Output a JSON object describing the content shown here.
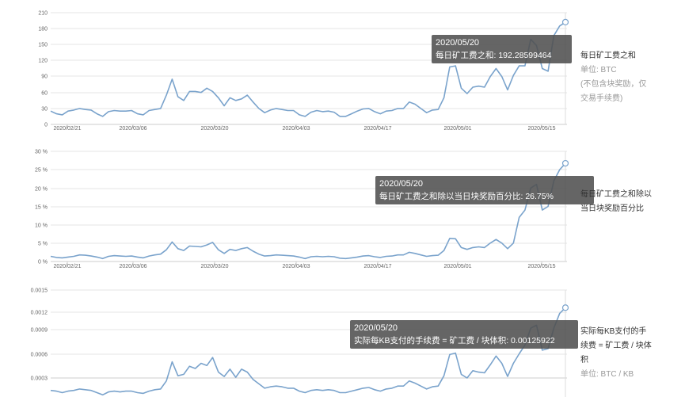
{
  "chart_data": [
    {
      "type": "line",
      "y_ticks": [
        "0",
        "30",
        "60",
        "90",
        "120",
        "150",
        "180",
        "210"
      ],
      "ylim": [
        0,
        210
      ],
      "x_tick_labels": [
        "2020/02/21",
        "2020/03/06",
        "2020/03/20",
        "2020/04/03",
        "2020/04/17",
        "2020/05/01",
        "2020/05/15"
      ],
      "grid": true,
      "tooltip": {
        "date": "2020/05/20",
        "text": "每日矿工费之和: 192.28599464"
      },
      "side": {
        "title": "每日矿工费之和",
        "unit": "单位: BTC",
        "note": "(不包含块奖励，仅交易手续费)"
      },
      "series": [
        {
          "values": [
            25,
            20,
            18,
            25,
            27,
            30,
            28,
            27,
            20,
            15,
            24,
            26,
            25,
            25,
            26,
            20,
            18,
            26,
            28,
            30,
            55,
            85,
            52,
            45,
            62,
            62,
            60,
            68,
            62,
            50,
            35,
            50,
            45,
            48,
            55,
            42,
            30,
            22,
            27,
            30,
            28,
            26,
            26,
            18,
            15,
            23,
            26,
            24,
            25,
            23,
            15,
            15,
            20,
            25,
            29,
            30,
            24,
            20,
            25,
            26,
            30,
            30,
            42,
            38,
            30,
            22,
            27,
            28,
            50,
            108,
            110,
            68,
            58,
            70,
            72,
            70,
            90,
            105,
            90,
            65,
            92,
            110,
            110,
            160,
            148,
            105,
            100,
            167,
            185,
            192.29
          ]
        }
      ]
    },
    {
      "type": "line",
      "y_ticks": [
        "0 %",
        "5 %",
        "10 %",
        "15 %",
        "20 %",
        "25 %",
        "30 %"
      ],
      "ylim": [
        0,
        30
      ],
      "x_tick_labels": [
        "2020/02/21",
        "2020/03/06",
        "2020/03/20",
        "2020/04/03",
        "2020/04/17",
        "2020/05/01",
        "2020/05/15"
      ],
      "grid": true,
      "tooltip": {
        "date": "2020/05/20",
        "text": "每日矿工费之和除以当日块奖励百分比: 26.75%"
      },
      "side": {
        "title": "每日矿工费之和除以当日块奖励百分比"
      },
      "series": [
        {
          "values": [
            1.4,
            1.1,
            1.0,
            1.2,
            1.4,
            1.8,
            1.7,
            1.5,
            1.2,
            0.8,
            1.4,
            1.6,
            1.5,
            1.4,
            1.5,
            1.2,
            1.0,
            1.5,
            1.8,
            2.0,
            3.2,
            5.3,
            3.5,
            3.0,
            4.2,
            4.1,
            4.0,
            4.5,
            5.2,
            3.2,
            2.2,
            3.3,
            3.0,
            3.5,
            3.8,
            2.8,
            2.0,
            1.5,
            1.6,
            1.8,
            1.7,
            1.6,
            1.5,
            1.2,
            0.8,
            1.3,
            1.4,
            1.3,
            1.4,
            1.3,
            0.9,
            0.8,
            1.0,
            1.2,
            1.5,
            1.6,
            1.3,
            1.1,
            1.4,
            1.5,
            1.8,
            1.8,
            2.5,
            2.2,
            1.8,
            1.4,
            1.6,
            1.7,
            3.0,
            6.3,
            6.2,
            3.8,
            3.3,
            3.8,
            4.0,
            3.8,
            5.0,
            6.0,
            5.0,
            3.5,
            5.0,
            12.0,
            14.0,
            20.0,
            21.0,
            14.0,
            15.0,
            22.0,
            25.0,
            26.75
          ]
        }
      ]
    },
    {
      "type": "line",
      "y_ticks": [
        "0.0003",
        "0.0006",
        "0.0009",
        "0.0012",
        "0.0015"
      ],
      "ylim": [
        0,
        0.0015
      ],
      "grid": true,
      "tooltip": {
        "date": "2020/05/20",
        "text": "实际每KB支付的手续费 = 矿工费 / 块体积: 0.00125922"
      },
      "side": {
        "title": "实际每KB支付的手续费 = 矿工费 / 块体积",
        "unit": "单位: BTC / KB"
      },
      "series": [
        {
          "values": [
            0.00013,
            0.00012,
            0.0001,
            0.00012,
            0.00013,
            0.00015,
            0.00014,
            0.00013,
            0.0001,
            7e-05,
            0.00011,
            0.00012,
            0.00011,
            0.00012,
            0.00012,
            0.0001,
            9e-05,
            0.00012,
            0.00014,
            0.00015,
            0.00026,
            0.00052,
            0.00033,
            0.00035,
            0.00046,
            0.00043,
            0.0005,
            0.00047,
            0.00058,
            0.00038,
            0.00032,
            0.00042,
            0.00031,
            0.00042,
            0.00038,
            0.00028,
            0.00022,
            0.00016,
            0.00018,
            0.00019,
            0.00018,
            0.00016,
            0.00016,
            0.00012,
            0.0001,
            0.00013,
            0.00014,
            0.00013,
            0.00014,
            0.00013,
            0.0001,
            0.0001,
            0.00012,
            0.00014,
            0.00016,
            0.00017,
            0.00014,
            0.00012,
            0.00015,
            0.00016,
            0.00019,
            0.00019,
            0.00026,
            0.00023,
            0.00019,
            0.00015,
            0.00018,
            0.00019,
            0.00033,
            0.00062,
            0.00064,
            0.00035,
            0.0003,
            0.0004,
            0.00038,
            0.00037,
            0.00048,
            0.0006,
            0.0005,
            0.00032,
            0.0005,
            0.00063,
            0.00075,
            0.00098,
            0.00102,
            0.00068,
            0.0007,
            0.00098,
            0.00118,
            0.00125922
          ]
        }
      ]
    }
  ]
}
